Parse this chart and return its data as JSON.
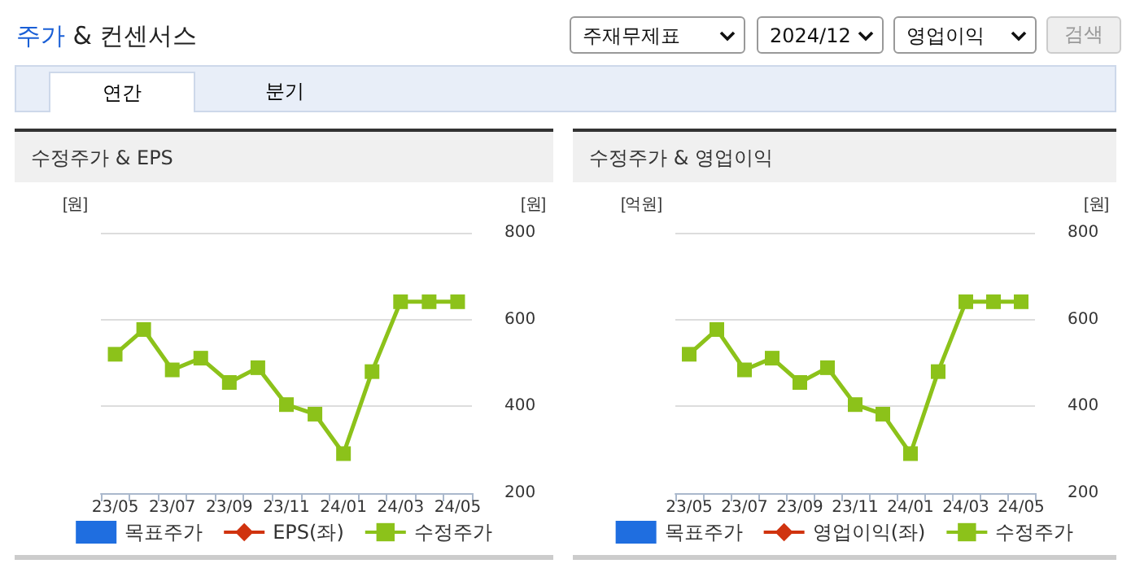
{
  "chart_data": [
    {
      "type": "other",
      "title": "주가 & 컨센서스",
      "annotations": [
        "주재무제표",
        "2024/12",
        "영업이익",
        "검색",
        "연간",
        "분기"
      ]
    },
    {
      "type": "line",
      "title": "수정주가 & EPS",
      "ylabel": "[원]",
      "y2label": "[원]",
      "categories": [
        "23/05",
        null,
        "23/07",
        null,
        "23/09",
        null,
        "23/11",
        null,
        "24/01",
        null,
        "24/03",
        null,
        "24/05"
      ],
      "y2lim": [
        200,
        800
      ],
      "y2ticks": [
        200,
        400,
        600,
        800
      ],
      "grid": true,
      "legend": "bottom",
      "series": [
        {
          "name": "목표주가",
          "type": "bar",
          "color": "#1f6ee0",
          "values": [
            null,
            null,
            null,
            null,
            null,
            null,
            null,
            null,
            null,
            null,
            null,
            null,
            null
          ]
        },
        {
          "name": "EPS(좌)",
          "type": "line",
          "marker": "diamond",
          "color": "#d0330f",
          "values": [
            null,
            null,
            null,
            null,
            null,
            null,
            null,
            null,
            null,
            null,
            null,
            null,
            null
          ]
        },
        {
          "name": "수정주가",
          "type": "line",
          "marker": "square",
          "axis": "y2",
          "color": "#8cc21a",
          "values": [
            520,
            577,
            484,
            511,
            455,
            489,
            404,
            382,
            291,
            480,
            641,
            641,
            641
          ]
        }
      ]
    },
    {
      "type": "line",
      "title": "수정주가 & 영업이익",
      "ylabel": "[억원]",
      "y2label": "[원]",
      "categories": [
        "23/05",
        null,
        "23/07",
        null,
        "23/09",
        null,
        "23/11",
        null,
        "24/01",
        null,
        "24/03",
        null,
        "24/05"
      ],
      "y2lim": [
        200,
        800
      ],
      "y2ticks": [
        200,
        400,
        600,
        800
      ],
      "grid": true,
      "legend": "bottom",
      "series": [
        {
          "name": "목표주가",
          "type": "bar",
          "color": "#1f6ee0",
          "values": [
            null,
            null,
            null,
            null,
            null,
            null,
            null,
            null,
            null,
            null,
            null,
            null,
            null
          ]
        },
        {
          "name": "영업이익(좌)",
          "type": "line",
          "marker": "diamond",
          "color": "#d0330f",
          "values": [
            null,
            null,
            null,
            null,
            null,
            null,
            null,
            null,
            null,
            null,
            null,
            null,
            null
          ]
        },
        {
          "name": "수정주가",
          "type": "line",
          "marker": "square",
          "axis": "y2",
          "color": "#8cc21a",
          "values": [
            520,
            577,
            484,
            511,
            455,
            489,
            404,
            382,
            291,
            480,
            641,
            641,
            641
          ]
        }
      ]
    }
  ]
}
